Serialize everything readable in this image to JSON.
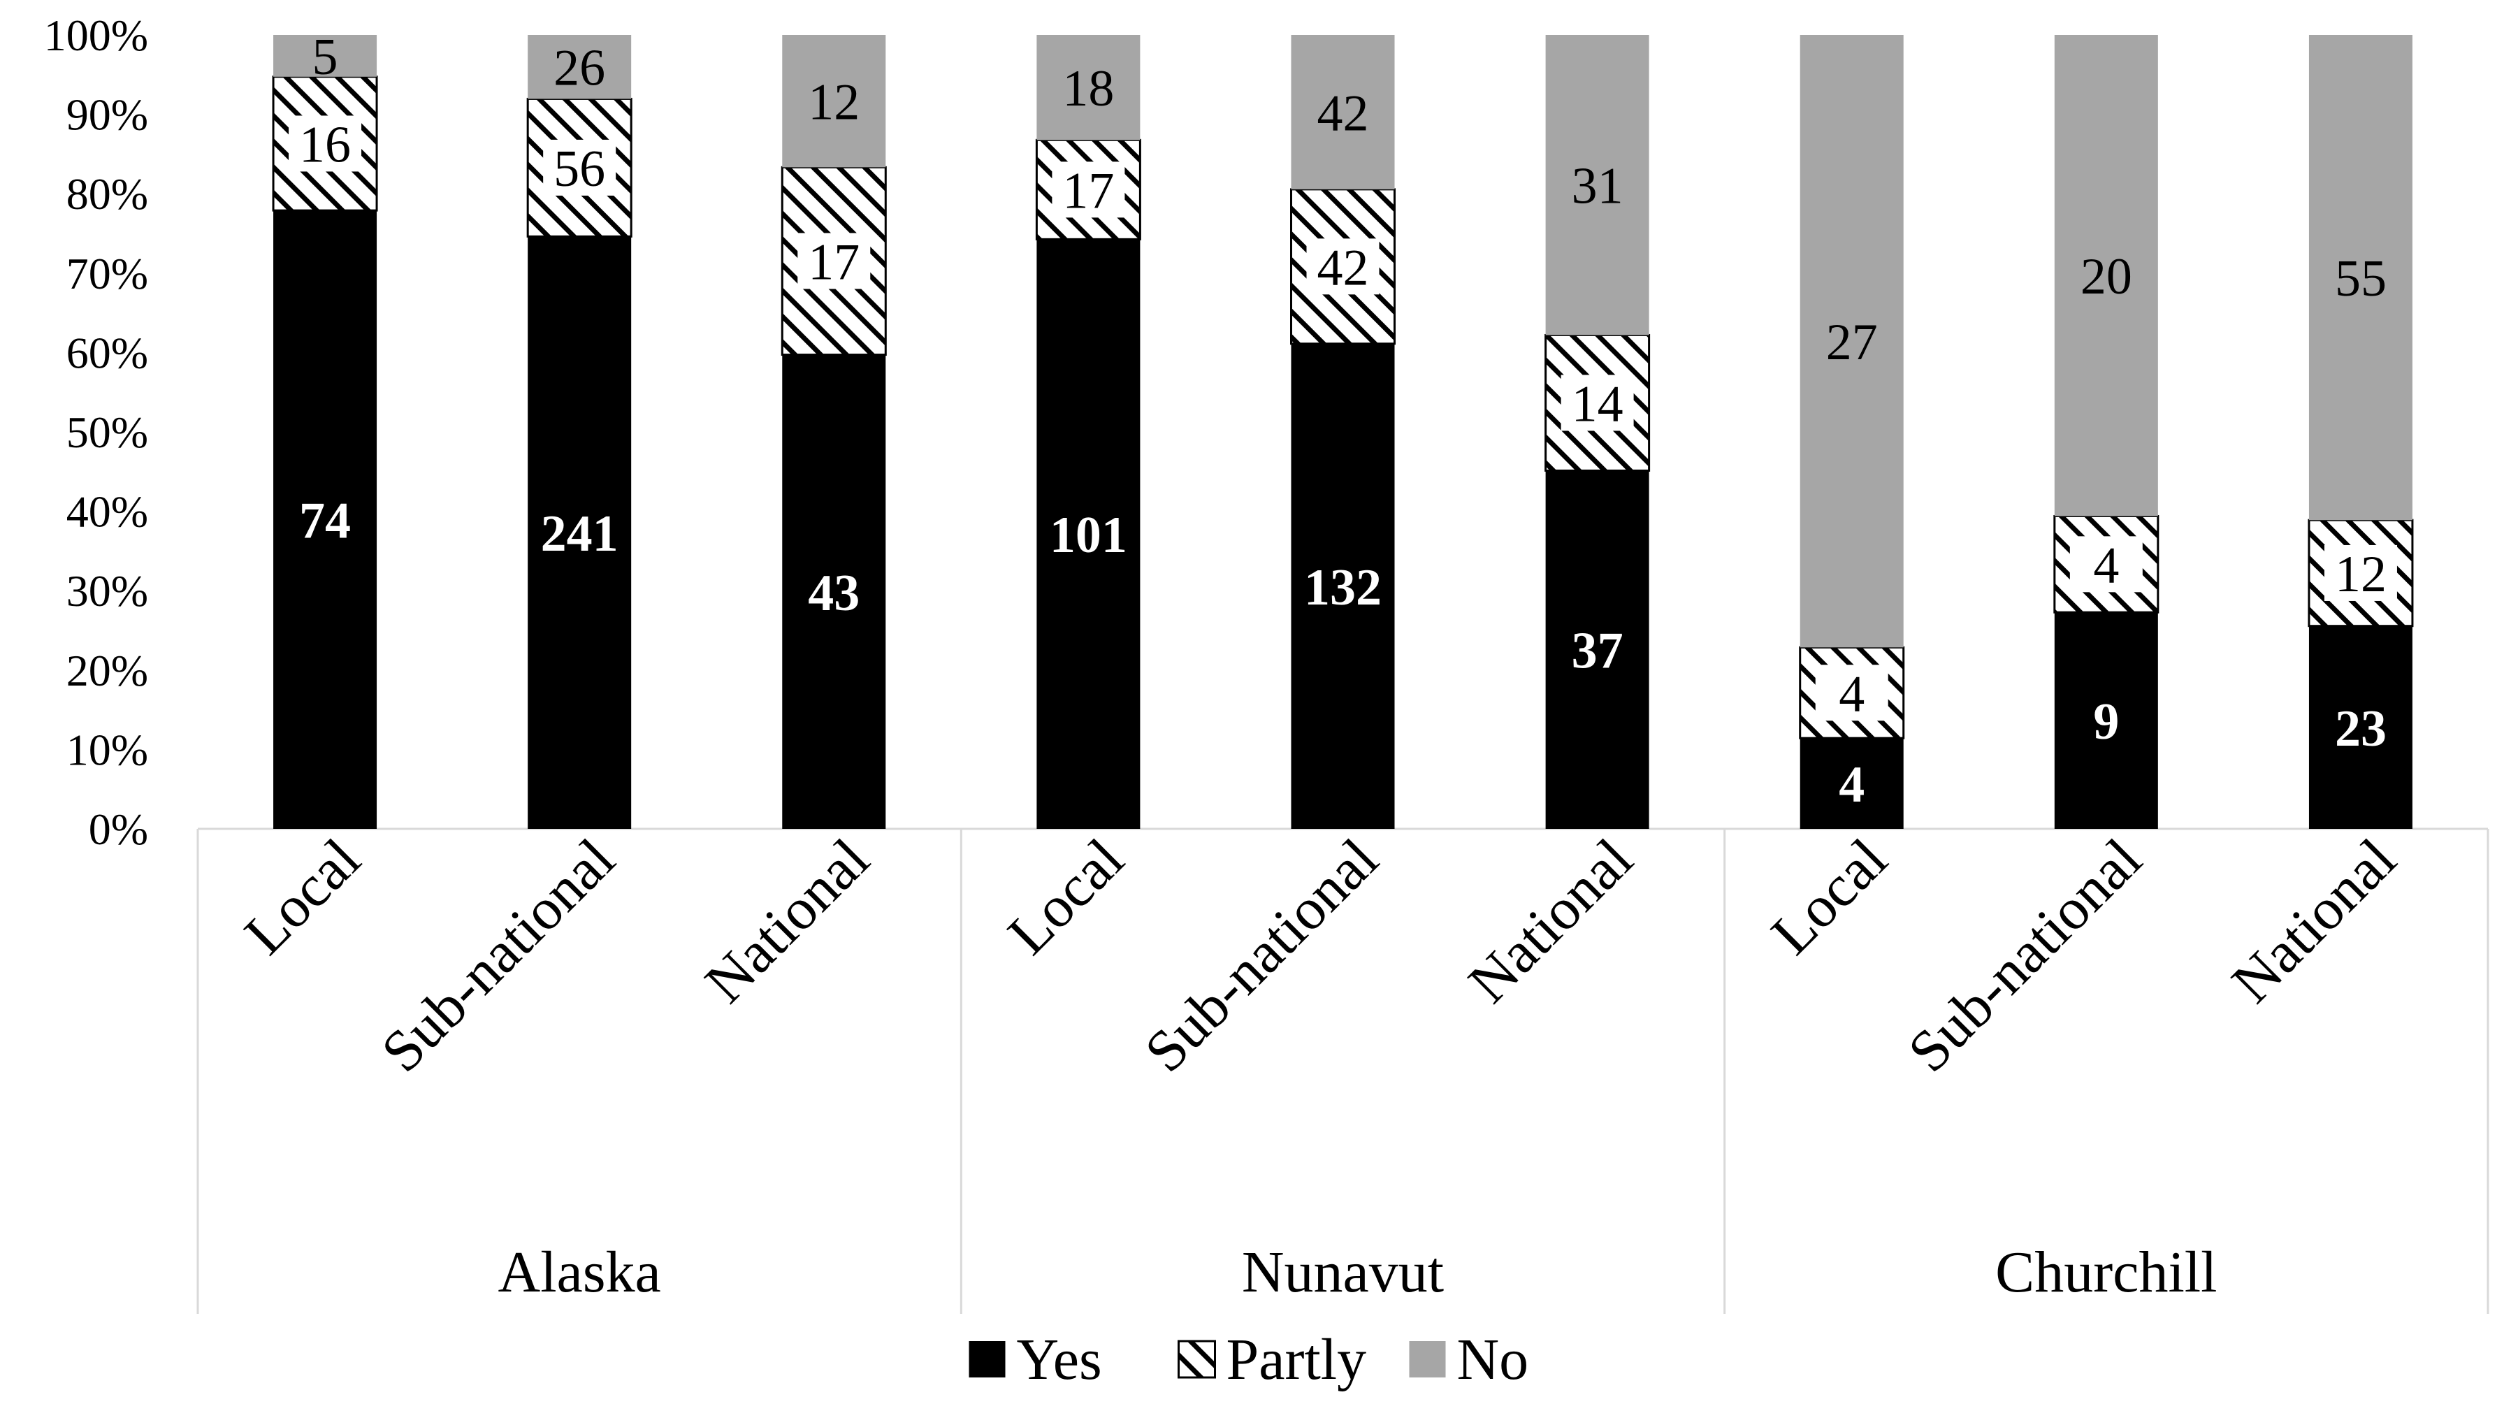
{
  "chart_data": {
    "type": "bar",
    "stacked": "percent",
    "title": "",
    "xlabel": "",
    "ylabel": "",
    "ylim": [
      0,
      100
    ],
    "y_ticks": [
      "0%",
      "10%",
      "20%",
      "30%",
      "40%",
      "50%",
      "60%",
      "70%",
      "80%",
      "90%",
      "100%"
    ],
    "groups": [
      {
        "name": "Alaska",
        "categories": [
          "Local",
          "Sub-national",
          "National"
        ]
      },
      {
        "name": "Nunavut",
        "categories": [
          "Local",
          "Sub-national",
          "National"
        ]
      },
      {
        "name": "Churchill",
        "categories": [
          "Local",
          "Sub-national",
          "National"
        ]
      }
    ],
    "series": [
      {
        "name": "Yes",
        "color": "#000000",
        "pattern": "solid",
        "values": [
          74,
          241,
          43,
          101,
          132,
          37,
          4,
          9,
          23
        ]
      },
      {
        "name": "Partly",
        "color": "#000000",
        "pattern": "hatch",
        "values": [
          16,
          56,
          17,
          17,
          42,
          14,
          4,
          4,
          12
        ]
      },
      {
        "name": "No",
        "color": "#a6a6a6",
        "pattern": "solid",
        "values": [
          5,
          26,
          12,
          18,
          42,
          31,
          27,
          20,
          55
        ]
      }
    ],
    "legend_position": "bottom",
    "grid": false
  }
}
